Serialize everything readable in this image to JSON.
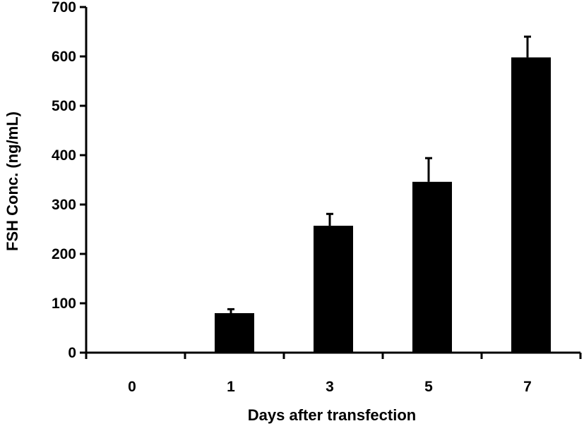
{
  "chart_data": {
    "type": "bar",
    "xlabel": "Days after transfection",
    "ylabel": "FSH Conc. (ng/mL)",
    "categories": [
      "0",
      "1",
      "3",
      "5",
      "7"
    ],
    "values": [
      0,
      80,
      257,
      346,
      598
    ],
    "error_upper": [
      0,
      8,
      24,
      48,
      42
    ],
    "ylim": [
      0,
      700
    ],
    "yticks": [
      "0",
      "100",
      "200",
      "300",
      "400",
      "500",
      "600",
      "700"
    ],
    "grid": false,
    "legend": "none",
    "bar_color": "#000000"
  }
}
